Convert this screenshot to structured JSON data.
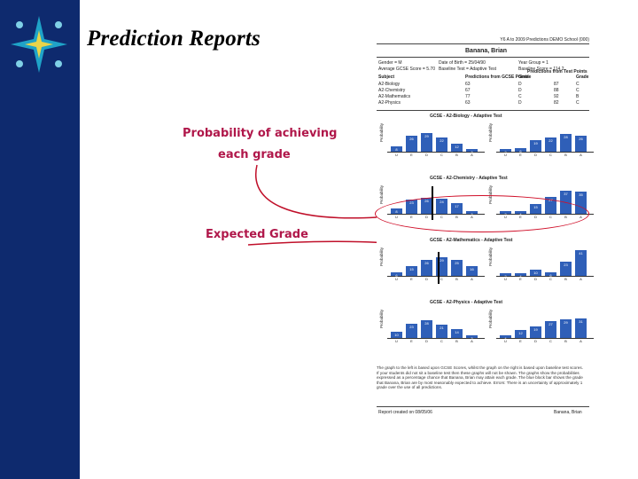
{
  "title": "Prediction Reports",
  "annotations": {
    "prob_line1": "Probability of achieving",
    "prob_line2": "each grade",
    "expected": "Expected Grade"
  },
  "report": {
    "header": "Y6 A to 2009 Predictions DEMO School (000)",
    "student": "Banana, Brian",
    "fields": [
      "Gender = M",
      "Date of Birth = 25/04/90",
      "Year Group = 1",
      "Average GCSE Score = 5.70",
      "Baseline Test = Adaptive Test",
      "Baseline Score = 114.2"
    ],
    "table_headers": [
      "Subject",
      "Predictions from GCSE Points",
      "Grade",
      "Predictions from Test Points",
      "Grade"
    ],
    "rows": [
      [
        "A2-Biology",
        "63",
        "D",
        "87",
        "C"
      ],
      [
        "A2-Chemistry",
        "67",
        "D",
        "88",
        "C"
      ],
      [
        "A2-Mathematics",
        "77",
        "C",
        "92",
        "B"
      ],
      [
        "A2-Physics",
        "63",
        "D",
        "82",
        "C"
      ]
    ],
    "charts": [
      {
        "title": "GCSE - A2-Biology - Adaptive Test",
        "left": [
          8,
          26,
          29,
          22,
          12,
          3
        ],
        "right": [
          2,
          6,
          19,
          22,
          28,
          26
        ]
      },
      {
        "title": "GCSE - A2-Chemistry - Adaptive Test",
        "left": [
          8,
          23,
          26,
          24,
          17,
          3
        ],
        "right": [
          2,
          4,
          15,
          27,
          37,
          35
        ]
      },
      {
        "title": "GCSE - A2-Mathematics - Adaptive Test",
        "left": [
          6,
          15,
          26,
          29,
          25,
          16
        ],
        "right": [
          2,
          4,
          10,
          6,
          23,
          41
        ]
      },
      {
        "title": "GCSE - A2-Physics - Adaptive Test",
        "left": [
          10,
          23,
          28,
          21,
          14,
          3
        ],
        "right": [
          4,
          12,
          19,
          27,
          29,
          31
        ]
      }
    ],
    "x_ticks": [
      "U",
      "E",
      "D",
      "C",
      "B",
      "A"
    ],
    "y_label": "Probability",
    "footer": "The graph to the left is based upon GCSE Scores, whilst the graph on the right is based upon baseline test scores. If your students did not sit a baseline test then these graphs will not be shown. The graphs show the probabilities expressed as a percentage chance that Banana, Brian may attain each grade. The blue block bar shows the grade that Banana, Brian are by most reasonably expected to achieve. Errors: There is an uncertainty of approximately 1 grade over the use of all predictions.",
    "export": "Report created on 08/05/06",
    "export_name": "Banana, Brian"
  }
}
